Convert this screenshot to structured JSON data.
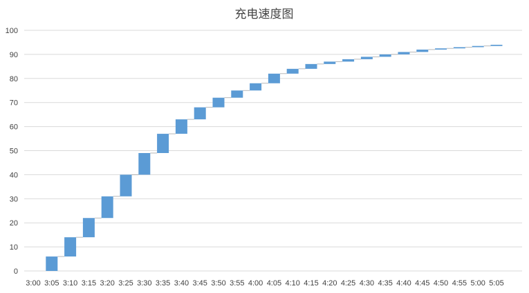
{
  "chart_data": {
    "type": "bar",
    "subtype": "waterfall",
    "title": "充电速度图",
    "xlabel": "",
    "ylabel": "",
    "ylim": [
      0,
      100
    ],
    "yticks": [
      0,
      10,
      20,
      30,
      40,
      50,
      60,
      70,
      80,
      90,
      100
    ],
    "grid": true,
    "legend": "none",
    "bar_color": "#5b9bd5",
    "categories": [
      "3:00",
      "3:05",
      "3:10",
      "3:15",
      "3:20",
      "3:25",
      "3:30",
      "3:35",
      "3:40",
      "3:45",
      "3:50",
      "3:55",
      "4:00",
      "4:05",
      "4:10",
      "4:15",
      "4:20",
      "4:25",
      "4:30",
      "4:35",
      "4:40",
      "4:45",
      "4:50",
      "4:55",
      "5:00",
      "5:05"
    ],
    "values": [
      0,
      6,
      14,
      22,
      31,
      40,
      49,
      57,
      63,
      68,
      72,
      75,
      78,
      82,
      84,
      86,
      87,
      88,
      89,
      90,
      91,
      92,
      92.5,
      93,
      93.5,
      94
    ]
  }
}
